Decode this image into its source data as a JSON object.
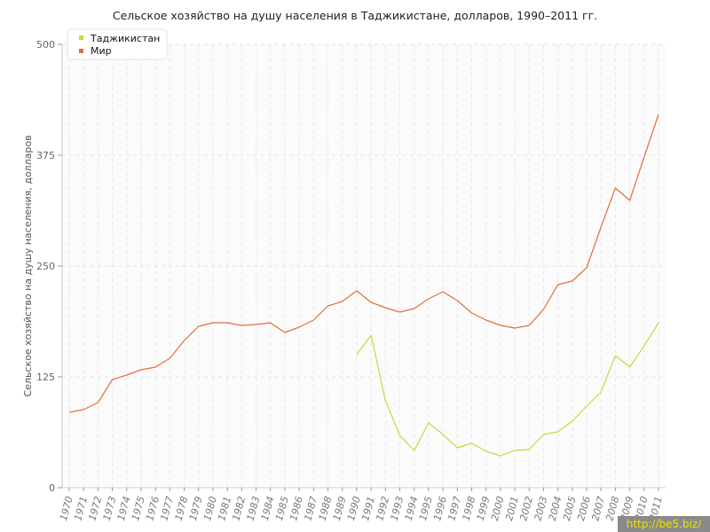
{
  "chart_data": {
    "type": "line",
    "title": "Сельское хозяйство на душу населения в Таджикистане, долларов, 1990–2011 гг.",
    "xlabel": "",
    "ylabel": "Сельское хозяйство на душу населения, долларов",
    "ylim": [
      0,
      500
    ],
    "yticks": [
      "0",
      "125",
      "250",
      "375",
      "500"
    ],
    "grid": true,
    "legend_position": "top-left",
    "x": [
      "1970",
      "1971",
      "1972",
      "1973",
      "1974",
      "1975",
      "1976",
      "1977",
      "1978",
      "1979",
      "1980",
      "1981",
      "1982",
      "1983",
      "1984",
      "1985",
      "1986",
      "1987",
      "1988",
      "1989",
      "1990",
      "1991",
      "1992",
      "1993",
      "1994",
      "1995",
      "1996",
      "1997",
      "1998",
      "1999",
      "2000",
      "2001",
      "2002",
      "2003",
      "2004",
      "2005",
      "2006",
      "2007",
      "2008",
      "2009",
      "2010",
      "2011"
    ],
    "series": [
      {
        "name": "Таджикистан",
        "color": "#bfdc3f",
        "values": [
          null,
          null,
          null,
          null,
          null,
          null,
          null,
          null,
          null,
          null,
          null,
          null,
          null,
          null,
          null,
          null,
          null,
          null,
          null,
          null,
          150,
          172,
          98,
          59,
          42,
          73,
          60,
          45,
          50,
          41,
          36,
          42,
          43,
          60,
          63,
          75,
          92,
          108,
          149,
          136,
          160,
          186
        ]
      },
      {
        "name": "Мир",
        "color": "#e0703a",
        "values": [
          85,
          88,
          96,
          122,
          127,
          133,
          136,
          146,
          166,
          182,
          186,
          186,
          183,
          184,
          186,
          175,
          181,
          189,
          205,
          210,
          222,
          209,
          203,
          198,
          202,
          213,
          221,
          211,
          197,
          189,
          183,
          180,
          183,
          201,
          229,
          233,
          248,
          294,
          338,
          324,
          373,
          421
        ]
      }
    ]
  },
  "watermark": "http://be5.biz/"
}
